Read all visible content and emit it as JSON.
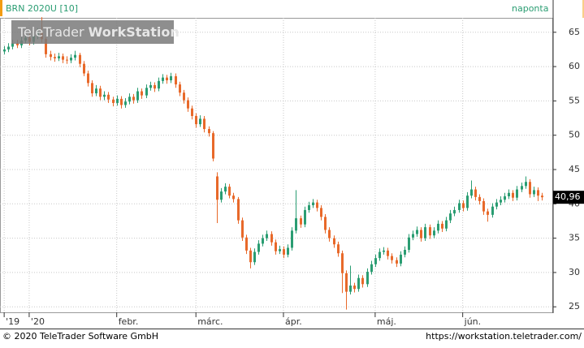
{
  "chart_data": {
    "type": "candlestick",
    "title": "BRN 2020U [10]",
    "period": "naponta",
    "watermark": {
      "brand": "TeleTrader",
      "product": "WorkStation"
    },
    "footer_left": "© 2020 TeleTrader Software GmbH",
    "footer_right": "https://workstation.teletrader.com/",
    "up_color": "#2a9d72",
    "down_color": "#e8692a",
    "ylim": [
      24.2,
      67.1
    ],
    "yticks": [
      25,
      30,
      35,
      40,
      45,
      50,
      55,
      60,
      65
    ],
    "xlim": [
      -1,
      131.5
    ],
    "xticks": [
      {
        "value": 0,
        "label": "'19"
      },
      {
        "value": 6,
        "label": "'20"
      },
      {
        "value": 27,
        "label": "febr."
      },
      {
        "value": 46,
        "label": "márc."
      },
      {
        "value": 67,
        "label": "ápr."
      },
      {
        "value": 89,
        "label": "máj."
      },
      {
        "value": 110,
        "label": "jún."
      }
    ],
    "grid": true,
    "last_label": "40,96",
    "series": [
      {
        "name": "BRN 2020U [10]",
        "open": [
          62.2,
          62.5,
          62.9,
          63.4,
          63.1,
          63.8,
          64.2,
          63.6,
          64.5,
          65.0,
          64.0,
          61.8,
          61.4,
          61.2,
          61.5,
          61.0,
          60.9,
          61.3,
          61.7,
          60.4,
          59.0,
          57.6,
          56.1,
          56.8,
          55.6,
          55.9,
          55.2,
          54.7,
          55.3,
          54.4,
          54.9,
          55.6,
          55.1,
          56.4,
          55.8,
          56.9,
          57.3,
          56.8,
          57.9,
          58.4,
          58.0,
          58.6,
          57.4,
          56.2,
          55.1,
          53.9,
          52.8,
          51.6,
          52.4,
          50.9,
          50.3,
          44.0,
          40.6,
          41.8,
          42.5,
          41.2,
          40.7,
          37.6,
          35.1,
          33.2,
          31.5,
          33.0,
          34.2,
          35.0,
          35.6,
          34.4,
          33.1,
          33.4,
          32.6,
          33.6,
          36.1,
          37.9,
          37.0,
          39.1,
          39.8,
          40.2,
          39.4,
          38.1,
          36.2,
          35.0,
          34.1,
          32.8,
          29.9,
          27.2,
          28.1,
          27.6,
          29.2,
          28.3,
          30.1,
          31.2,
          32.1,
          33.0,
          33.2,
          32.4,
          31.8,
          31.3,
          32.6,
          33.3,
          35.1,
          35.6,
          36.2,
          35.0,
          36.6,
          35.4,
          36.1,
          37.1,
          36.4,
          37.6,
          38.6,
          39.1,
          40.1,
          39.4,
          41.2,
          42.1,
          41.0,
          40.4,
          38.9,
          38.4,
          39.6,
          40.2,
          40.6,
          41.1,
          41.6,
          40.9,
          42.1,
          42.6,
          43.2,
          41.4,
          42.0,
          41.2
        ],
        "high": [
          63.0,
          63.4,
          63.9,
          63.9,
          64.3,
          64.7,
          64.8,
          65.0,
          65.6,
          67.2,
          64.3,
          62.3,
          61.9,
          62.0,
          61.9,
          61.5,
          61.8,
          62.3,
          62.0,
          60.8,
          59.4,
          58.0,
          57.3,
          57.2,
          56.4,
          56.3,
          55.6,
          55.8,
          55.7,
          55.4,
          56.1,
          56.0,
          56.9,
          56.8,
          57.4,
          57.8,
          57.7,
          58.4,
          58.9,
          58.8,
          59.1,
          59.0,
          57.8,
          56.6,
          55.5,
          54.3,
          53.2,
          52.9,
          52.8,
          51.3,
          50.6,
          44.6,
          42.3,
          43.0,
          42.9,
          41.6,
          41.0,
          38.0,
          35.5,
          33.6,
          33.5,
          34.7,
          35.5,
          36.1,
          36.0,
          34.8,
          33.9,
          33.8,
          34.1,
          36.6,
          42.0,
          38.3,
          39.6,
          40.3,
          40.7,
          40.6,
          39.8,
          38.5,
          36.6,
          35.4,
          34.5,
          33.2,
          30.3,
          31.0,
          28.5,
          29.7,
          29.6,
          30.6,
          31.7,
          32.6,
          33.5,
          33.7,
          33.6,
          32.8,
          32.2,
          33.1,
          33.8,
          35.6,
          36.1,
          36.7,
          36.6,
          37.1,
          37.0,
          36.6,
          37.6,
          37.5,
          38.1,
          39.1,
          39.6,
          40.6,
          40.5,
          41.7,
          43.4,
          42.5,
          41.4,
          40.8,
          39.3,
          40.1,
          40.7,
          41.1,
          41.6,
          42.1,
          42.0,
          42.6,
          43.1,
          44.0,
          43.6,
          42.5,
          42.4,
          41.6
        ],
        "low": [
          61.8,
          62.1,
          62.5,
          62.7,
          62.7,
          63.4,
          63.1,
          63.2,
          64.0,
          63.5,
          61.3,
          60.9,
          60.7,
          60.8,
          60.5,
          60.4,
          60.5,
          60.9,
          59.9,
          58.6,
          57.1,
          55.6,
          55.7,
          55.1,
          55.1,
          54.7,
          54.2,
          54.3,
          53.9,
          54.0,
          54.5,
          54.6,
          54.7,
          55.3,
          55.4,
          56.5,
          56.3,
          56.4,
          57.5,
          57.5,
          57.6,
          56.9,
          55.7,
          54.6,
          53.4,
          52.3,
          51.1,
          51.2,
          50.4,
          49.8,
          46.2,
          37.2,
          40.2,
          41.4,
          40.8,
          40.2,
          37.1,
          34.6,
          32.7,
          30.6,
          31.1,
          32.6,
          33.8,
          34.6,
          33.9,
          32.6,
          32.7,
          32.1,
          32.2,
          33.2,
          35.7,
          36.5,
          36.6,
          38.7,
          39.4,
          38.9,
          37.6,
          35.7,
          34.5,
          33.6,
          32.3,
          27.0,
          24.6,
          26.8,
          27.1,
          27.2,
          27.8,
          27.9,
          29.7,
          30.8,
          31.7,
          32.6,
          31.9,
          31.3,
          30.8,
          30.9,
          32.2,
          32.9,
          34.7,
          35.2,
          34.5,
          34.6,
          34.9,
          35.0,
          35.7,
          35.9,
          36.0,
          37.2,
          38.2,
          38.7,
          38.9,
          39.0,
          40.8,
          40.5,
          39.9,
          38.4,
          37.4,
          38.0,
          39.2,
          39.8,
          40.2,
          40.7,
          40.4,
          40.5,
          41.7,
          42.2,
          40.9,
          41.0,
          40.4,
          40.5
        ],
        "close": [
          62.5,
          62.9,
          63.4,
          63.1,
          63.8,
          64.2,
          63.6,
          64.5,
          65.0,
          64.0,
          61.8,
          61.4,
          61.2,
          61.5,
          61.0,
          60.9,
          61.3,
          61.7,
          60.4,
          59.0,
          57.6,
          56.1,
          56.8,
          55.6,
          55.9,
          55.2,
          54.7,
          55.3,
          54.4,
          54.9,
          55.6,
          55.1,
          56.4,
          55.8,
          56.9,
          57.3,
          56.8,
          57.9,
          58.4,
          58.0,
          58.6,
          57.4,
          56.2,
          55.1,
          53.9,
          52.8,
          51.6,
          52.4,
          50.9,
          50.3,
          46.6,
          40.6,
          41.8,
          42.5,
          41.2,
          40.7,
          37.6,
          35.1,
          33.2,
          31.5,
          33.0,
          34.2,
          35.0,
          35.6,
          34.4,
          33.1,
          33.4,
          32.6,
          33.6,
          36.1,
          37.9,
          37.0,
          39.1,
          39.8,
          40.2,
          39.4,
          38.1,
          36.2,
          35.0,
          34.1,
          32.8,
          29.9,
          27.2,
          28.1,
          27.6,
          29.2,
          28.3,
          30.1,
          31.2,
          32.1,
          33.0,
          33.2,
          32.4,
          31.8,
          31.3,
          32.6,
          33.3,
          35.1,
          35.6,
          36.2,
          35.0,
          36.6,
          35.4,
          36.1,
          37.1,
          36.4,
          37.6,
          38.6,
          39.1,
          40.1,
          39.4,
          41.2,
          42.1,
          41.0,
          40.4,
          38.9,
          38.4,
          39.6,
          40.2,
          40.6,
          41.1,
          41.6,
          40.9,
          42.1,
          42.6,
          43.2,
          41.4,
          42.0,
          41.2,
          40.96
        ]
      }
    ]
  }
}
